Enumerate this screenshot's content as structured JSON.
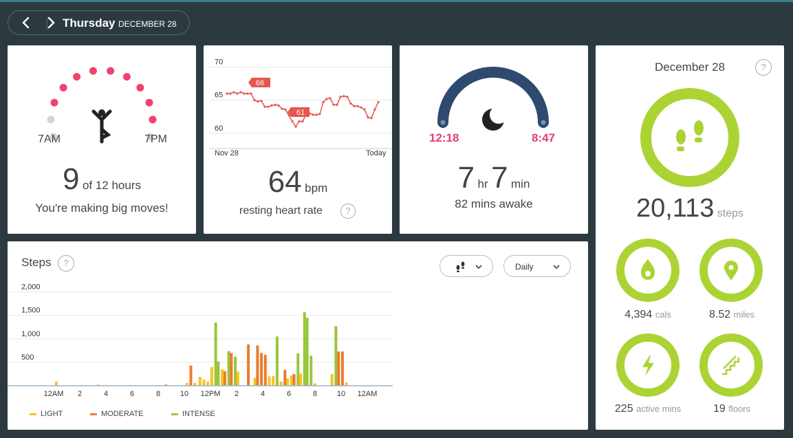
{
  "header": {
    "day": "Thursday",
    "date": "DECEMBER 28",
    "prev_icon": "chevron-left-icon",
    "next_icon": "chevron-right-icon"
  },
  "hourly": {
    "count": "9",
    "of_text": "of 12 hours",
    "message": "You're making big moves!",
    "start_label": "7AM",
    "end_label": "7PM",
    "hours_active": [
      false,
      false,
      true,
      true,
      true,
      true,
      true,
      true,
      true,
      true,
      true,
      false
    ],
    "colors": {
      "active": "#f0426e",
      "inactive": "#d4d4d4"
    }
  },
  "heart": {
    "value": "64",
    "unit": "bpm",
    "label": "resting heart rate",
    "chart_data": {
      "type": "line",
      "x_labels": [
        "Nov 28",
        "Today"
      ],
      "yticks": [
        60,
        65,
        70
      ],
      "ylim": [
        57.7,
        71.2
      ],
      "values": [
        66,
        66,
        66.2,
        66,
        66.2,
        66,
        66,
        66,
        65,
        64.8,
        64.9,
        64,
        64,
        64.2,
        64.3,
        64.2,
        63.7,
        63.6,
        62.7,
        61.8,
        61,
        61.8,
        61.8,
        62.8,
        63,
        62.8,
        62.8,
        62.9,
        64.7,
        65.2,
        65.3,
        64.3,
        64.3,
        65.5,
        65.6,
        65.5,
        64.5,
        64.1,
        64.1,
        63.9,
        63.6,
        62.4,
        62.3,
        63.6,
        64.7
      ],
      "annotations": [
        {
          "label": "66"
        },
        {
          "label": "61"
        }
      ],
      "color": "#e5574d"
    }
  },
  "sleep": {
    "start": "12:18",
    "end": "8:47",
    "hours": "7",
    "hr_unit": "hr",
    "mins": "7",
    "min_unit": "min",
    "awake": "82 mins awake",
    "icon": "moon-icon",
    "colors": {
      "arc": "#2e4a6e",
      "time": "#e53d72"
    }
  },
  "summary": {
    "date": "December 28",
    "steps": "20,113",
    "steps_unit": "steps",
    "cals": "4,394",
    "cals_unit": "cals",
    "miles": "8.52",
    "miles_unit": "miles",
    "active": "225",
    "active_unit": "active mins",
    "floors": "19",
    "floors_unit": "floors",
    "ring_color": "#acd334"
  },
  "steps_panel": {
    "title": "Steps",
    "metric_icon": "footsteps-icon",
    "period": "Daily",
    "legend": [
      {
        "label": "LIGHT",
        "color": "#f7c325"
      },
      {
        "label": "MODERATE",
        "color": "#ec7b2d"
      },
      {
        "label": "INTENSE",
        "color": "#98c63d"
      }
    ],
    "chart_data": {
      "type": "bar",
      "stacked": false,
      "ylim": [
        0,
        2200
      ],
      "yticks": [
        500,
        1000,
        1500,
        2000
      ],
      "ytick_labels": [
        "500",
        "1,000",
        "1,500",
        "2,000"
      ],
      "xtick_labels": [
        "12AM",
        "2",
        "4",
        "6",
        "8",
        "10",
        "12PM",
        "2",
        "4",
        "6",
        "8",
        "10",
        "12AM"
      ],
      "x_unit": "hour",
      "bars": [
        {
          "hour": 0.2,
          "level": "light",
          "value": 90
        },
        {
          "hour": 3.4,
          "level": "light",
          "value": 25
        },
        {
          "hour": 8.6,
          "level": "light",
          "value": 35
        },
        {
          "hour": 10.2,
          "level": "light",
          "value": 60
        },
        {
          "hour": 10.5,
          "level": "moderate",
          "value": 430
        },
        {
          "hour": 10.8,
          "level": "light",
          "value": 60
        },
        {
          "hour": 11.2,
          "level": "light",
          "value": 190
        },
        {
          "hour": 11.5,
          "level": "light",
          "value": 130
        },
        {
          "hour": 11.8,
          "level": "light",
          "value": 90
        },
        {
          "hour": 12.1,
          "level": "light",
          "value": 400
        },
        {
          "hour": 12.4,
          "level": "intense",
          "value": 1350
        },
        {
          "hour": 12.6,
          "level": "intense",
          "value": 520
        },
        {
          "hour": 12.9,
          "level": "light",
          "value": 350
        },
        {
          "hour": 13.1,
          "level": "moderate",
          "value": 310
        },
        {
          "hour": 13.4,
          "level": "intense",
          "value": 740
        },
        {
          "hour": 13.6,
          "level": "moderate",
          "value": 700
        },
        {
          "hour": 13.9,
          "level": "intense",
          "value": 620
        },
        {
          "hour": 14.1,
          "level": "light",
          "value": 300
        },
        {
          "hour": 14.9,
          "level": "moderate",
          "value": 880
        },
        {
          "hour": 15.4,
          "level": "light",
          "value": 170
        },
        {
          "hour": 15.6,
          "level": "moderate",
          "value": 860
        },
        {
          "hour": 15.9,
          "level": "moderate",
          "value": 700
        },
        {
          "hour": 16.2,
          "level": "moderate",
          "value": 660
        },
        {
          "hour": 16.5,
          "level": "light",
          "value": 200
        },
        {
          "hour": 16.8,
          "level": "light",
          "value": 210
        },
        {
          "hour": 17.1,
          "level": "intense",
          "value": 1050
        },
        {
          "hour": 17.4,
          "level": "light",
          "value": 90
        },
        {
          "hour": 17.7,
          "level": "moderate",
          "value": 340
        },
        {
          "hour": 17.9,
          "level": "light",
          "value": 160
        },
        {
          "hour": 18.2,
          "level": "light",
          "value": 220
        },
        {
          "hour": 18.4,
          "level": "moderate",
          "value": 250
        },
        {
          "hour": 18.7,
          "level": "intense",
          "value": 690
        },
        {
          "hour": 18.9,
          "level": "light",
          "value": 260
        },
        {
          "hour": 19.2,
          "level": "intense",
          "value": 1570
        },
        {
          "hour": 19.4,
          "level": "intense",
          "value": 1450
        },
        {
          "hour": 19.7,
          "level": "intense",
          "value": 640
        },
        {
          "hour": 20.0,
          "level": "light",
          "value": 50
        },
        {
          "hour": 21.3,
          "level": "light",
          "value": 250
        },
        {
          "hour": 21.6,
          "level": "intense",
          "value": 1270
        },
        {
          "hour": 21.8,
          "level": "moderate",
          "value": 730
        },
        {
          "hour": 22.1,
          "level": "moderate",
          "value": 730
        },
        {
          "hour": 22.4,
          "level": "light",
          "value": 70
        }
      ]
    }
  }
}
